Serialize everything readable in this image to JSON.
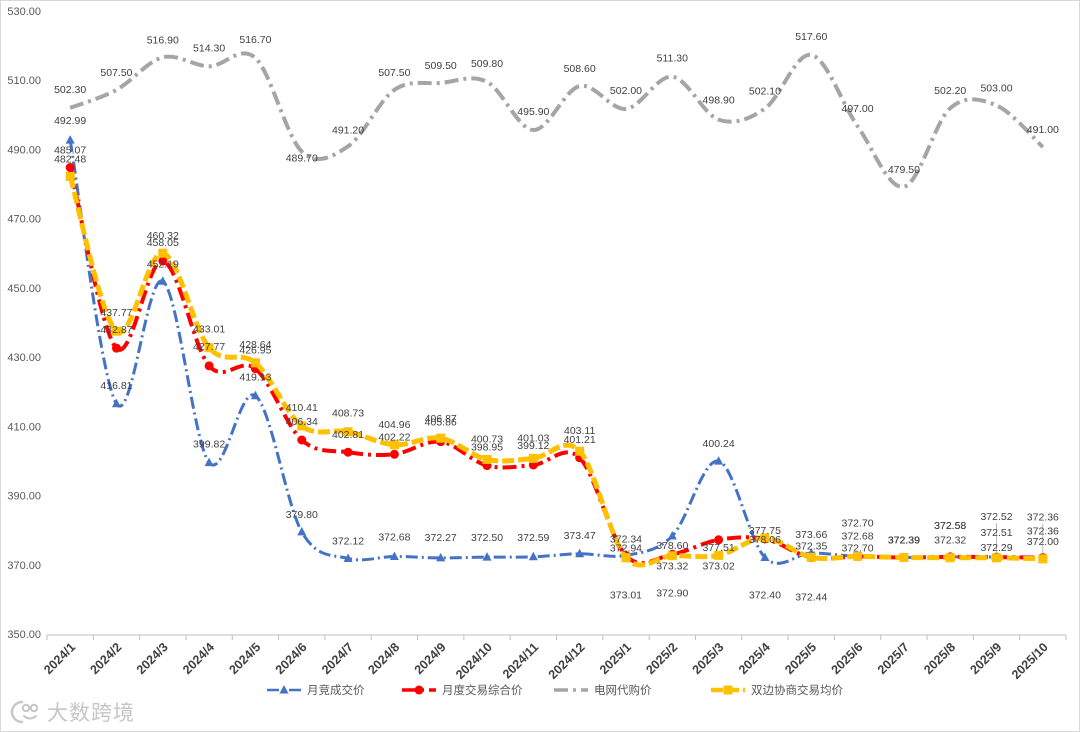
{
  "chart_data": {
    "type": "line",
    "smooth": true,
    "grid": false,
    "legend_position": "bottom",
    "categories": [
      "2024/1",
      "2024/2",
      "2024/3",
      "2024/4",
      "2024/5",
      "2024/6",
      "2024/7",
      "2024/8",
      "2024/9",
      "2024/10",
      "2024/11",
      "2024/12",
      "2025/1",
      "2025/2",
      "2025/3",
      "2025/4",
      "2025/5",
      "2025/6",
      "2025/7",
      "2025/8",
      "2025/9",
      "2025/10"
    ],
    "ylim": [
      350,
      530
    ],
    "y_tick_labels": [
      "350.00",
      "370.00",
      "390.00",
      "410.00",
      "430.00",
      "450.00",
      "470.00",
      "490.00",
      "510.00",
      "530.00"
    ],
    "series": [
      {
        "name": "月竞成交价",
        "color": "#4472C4",
        "marker": "triangle",
        "values": [
          492.99,
          416.81,
          452.19,
          399.82,
          419.13,
          379.8,
          372.12,
          372.68,
          372.27,
          372.5,
          372.59,
          373.47,
          373.01,
          378.6,
          400.24,
          372.4,
          373.66,
          372.7,
          372.39,
          372.58,
          372.52,
          372.36
        ]
      },
      {
        "name": "月度交易综合价",
        "color": "#FF0000",
        "marker": "circle",
        "values": [
          485.07,
          432.87,
          458.05,
          427.77,
          426.95,
          406.34,
          402.81,
          402.22,
          405.86,
          398.95,
          399.12,
          401.21,
          372.94,
          373.32,
          377.51,
          377.75,
          372.35,
          372.68,
          372.39,
          372.58,
          372.51,
          372.36
        ]
      },
      {
        "name": "电网代购价",
        "color": "#A5A5A5",
        "marker": "none",
        "values": [
          502.3,
          507.5,
          516.9,
          514.3,
          516.7,
          489.7,
          491.2,
          507.5,
          509.5,
          509.8,
          495.9,
          508.6,
          502.0,
          511.3,
          498.9,
          502.1,
          517.6,
          497.0,
          479.5,
          502.2,
          503.0,
          491.0
        ]
      },
      {
        "name": "双边协商交易均价",
        "color": "#FFC000",
        "marker": "square",
        "values": [
          482.48,
          437.77,
          460.32,
          433.01,
          428.64,
          410.41,
          408.73,
          404.96,
          406.87,
          400.73,
          401.03,
          403.11,
          372.34,
          372.9,
          373.02,
          378.06,
          372.44,
          372.7,
          372.39,
          372.32,
          372.29,
          372.0
        ]
      }
    ]
  },
  "watermark": {
    "text": "大数跨境",
    "icon": "logo-icon"
  }
}
